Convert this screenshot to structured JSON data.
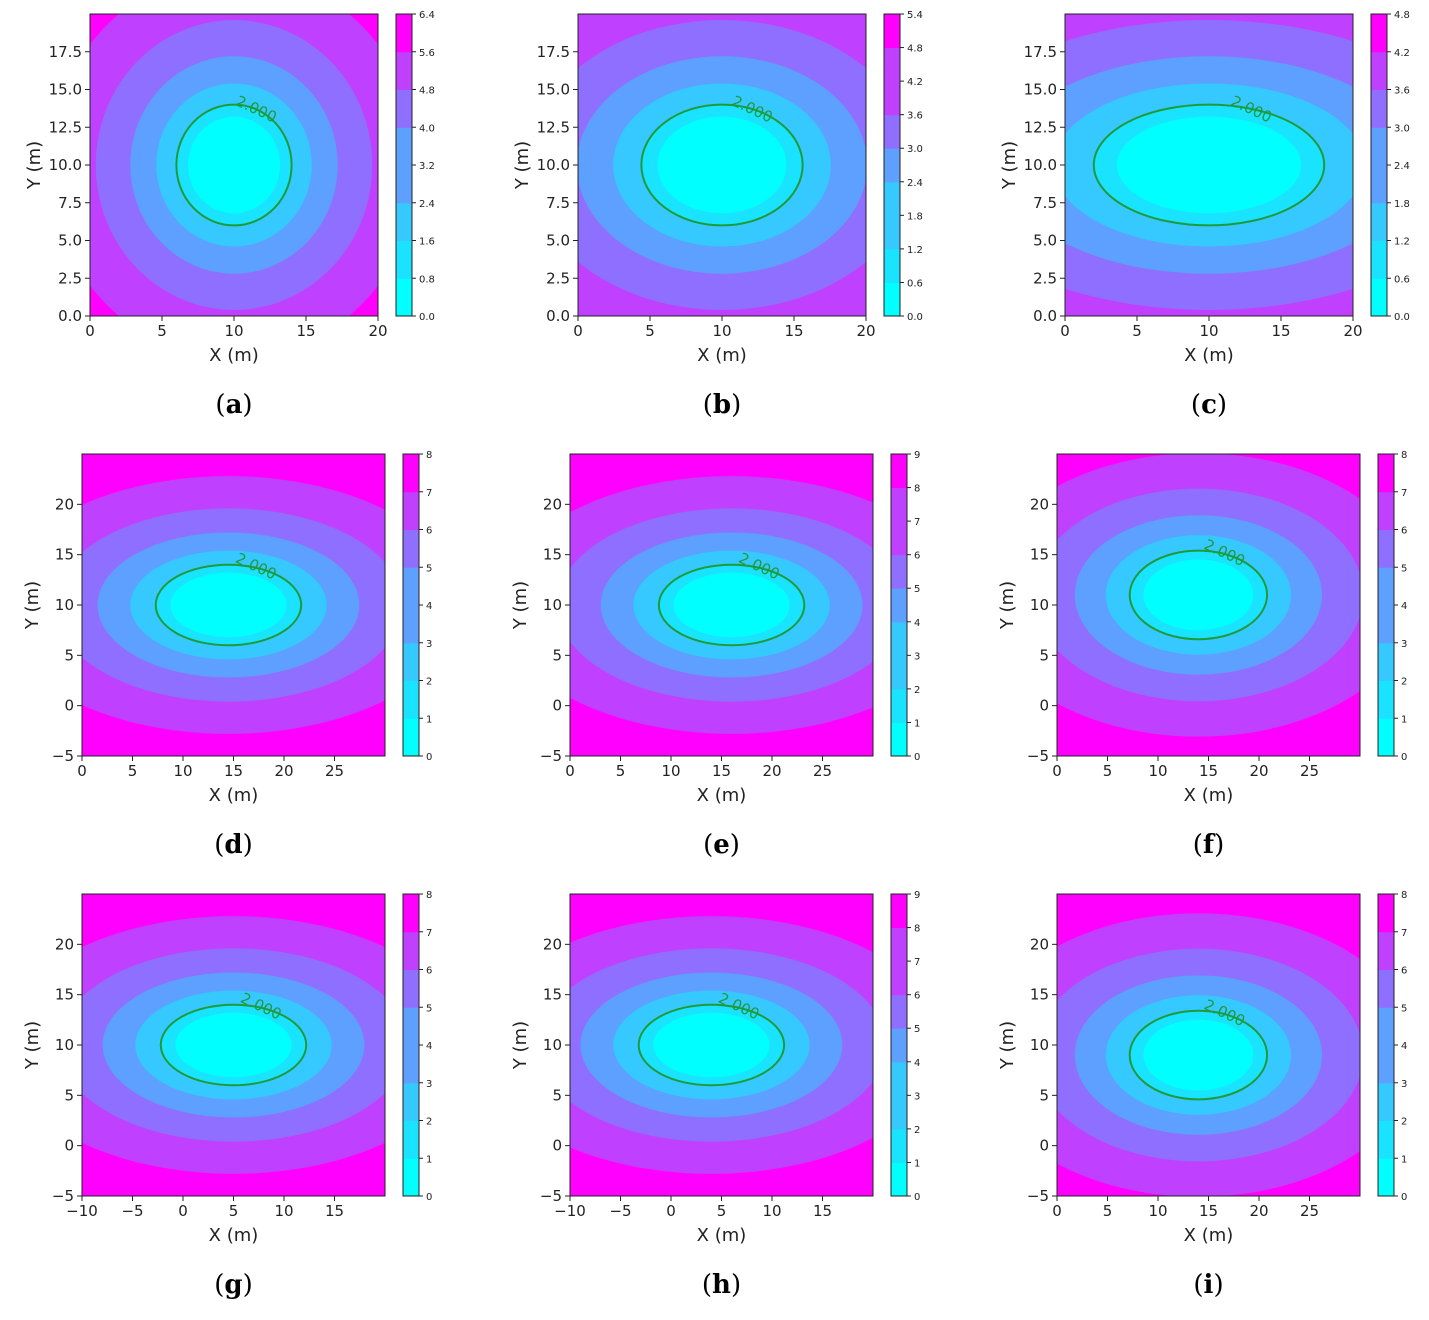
{
  "figure": {
    "panels": [
      "a",
      "b",
      "c",
      "d",
      "e",
      "f",
      "g",
      "h",
      "i"
    ]
  },
  "chart_data": [
    {
      "id": "a",
      "caption": "a",
      "type": "contourf",
      "xlabel": "X (m)",
      "ylabel": "Y (m)",
      "xlim": [
        0,
        20
      ],
      "ylim": [
        0,
        20
      ],
      "xticks": [
        "0",
        "5",
        "10",
        "15",
        "20"
      ],
      "yticks": [
        "0.0",
        "2.5",
        "5.0",
        "7.5",
        "10.0",
        "12.5",
        "15.0",
        "17.5"
      ],
      "colorbar": {
        "ticks": [
          "0.0",
          "0.8",
          "1.6",
          "2.4",
          "3.2",
          "4.0",
          "4.8",
          "5.6",
          "6.4"
        ],
        "max": 6.4
      },
      "field": {
        "cx": 10,
        "cy": 10,
        "sx": 1,
        "sy": 1
      },
      "contour": {
        "level": 2.0,
        "label": "2.000"
      }
    },
    {
      "id": "b",
      "caption": "b",
      "type": "contourf",
      "xlabel": "X (m)",
      "ylabel": "Y (m)",
      "xlim": [
        0,
        20
      ],
      "ylim": [
        0,
        20
      ],
      "xticks": [
        "0",
        "5",
        "10",
        "15",
        "20"
      ],
      "yticks": [
        "0.0",
        "2.5",
        "5.0",
        "7.5",
        "10.0",
        "12.5",
        "15.0",
        "17.5"
      ],
      "colorbar": {
        "ticks": [
          "0.0",
          "0.6",
          "1.2",
          "1.8",
          "2.4",
          "3.0",
          "3.6",
          "4.2",
          "4.8",
          "5.4"
        ],
        "max": 5.4
      },
      "field": {
        "cx": 10,
        "cy": 10,
        "sx": 1.4,
        "sy": 1
      },
      "contour": {
        "level": 2.0,
        "label": "2.000"
      }
    },
    {
      "id": "c",
      "caption": "c",
      "type": "contourf",
      "xlabel": "X (m)",
      "ylabel": "Y (m)",
      "xlim": [
        0,
        20
      ],
      "ylim": [
        0,
        20
      ],
      "xticks": [
        "0",
        "5",
        "10",
        "15",
        "20"
      ],
      "yticks": [
        "0.0",
        "2.5",
        "5.0",
        "7.5",
        "10.0",
        "12.5",
        "15.0",
        "17.5"
      ],
      "colorbar": {
        "ticks": [
          "0.0",
          "0.6",
          "1.2",
          "1.8",
          "2.4",
          "3.0",
          "3.6",
          "4.2",
          "4.8"
        ],
        "max": 4.8
      },
      "field": {
        "cx": 10,
        "cy": 10,
        "sx": 2,
        "sy": 1
      },
      "contour": {
        "level": 2.0,
        "label": "2.000"
      }
    },
    {
      "id": "d",
      "caption": "d",
      "type": "contourf",
      "xlabel": "X (m)",
      "ylabel": "Y (m)",
      "xlim": [
        0,
        30
      ],
      "ylim": [
        -5,
        25
      ],
      "xticks": [
        "0",
        "5",
        "10",
        "15",
        "20",
        "25"
      ],
      "yticks": [
        "−5",
        "0",
        "5",
        "10",
        "15",
        "20"
      ],
      "colorbar": {
        "ticks": [
          "0",
          "1",
          "2",
          "3",
          "4",
          "5",
          "6",
          "7",
          "8"
        ],
        "max": 8
      },
      "field": {
        "cx": 14.5,
        "cy": 10,
        "sx": 1.8,
        "sy": 1
      },
      "contour": {
        "level": 2.0,
        "label": "2.000"
      }
    },
    {
      "id": "e",
      "caption": "e",
      "type": "contourf",
      "xlabel": "X (m)",
      "ylabel": "Y (m)",
      "xlim": [
        0,
        30
      ],
      "ylim": [
        -5,
        25
      ],
      "xticks": [
        "0",
        "5",
        "10",
        "15",
        "20",
        "25"
      ],
      "yticks": [
        "−5",
        "0",
        "5",
        "10",
        "15",
        "20"
      ],
      "colorbar": {
        "ticks": [
          "0",
          "1",
          "2",
          "3",
          "4",
          "5",
          "6",
          "7",
          "8",
          "9"
        ],
        "max": 9
      },
      "field": {
        "cx": 16,
        "cy": 10,
        "sx": 1.8,
        "sy": 1
      },
      "contour": {
        "level": 2.0,
        "label": "2.000"
      }
    },
    {
      "id": "f",
      "caption": "f",
      "type": "contourf",
      "xlabel": "X (m)",
      "ylabel": "Y (m)",
      "xlim": [
        0,
        30
      ],
      "ylim": [
        -5,
        25
      ],
      "xticks": [
        "0",
        "5",
        "10",
        "15",
        "20",
        "25"
      ],
      "yticks": [
        "−5",
        "0",
        "5",
        "10",
        "15",
        "20"
      ],
      "colorbar": {
        "ticks": [
          "0",
          "1",
          "2",
          "3",
          "4",
          "5",
          "6",
          "7",
          "8"
        ],
        "max": 8
      },
      "field": {
        "cx": 14,
        "cy": 11,
        "sx": 1.7,
        "sy": 1.1
      },
      "contour": {
        "level": 2.0,
        "label": "2.000"
      }
    },
    {
      "id": "g",
      "caption": "g",
      "type": "contourf",
      "xlabel": "X (m)",
      "ylabel": "Y (m)",
      "xlim": [
        -10,
        20
      ],
      "ylim": [
        -5,
        25
      ],
      "xticks": [
        "−10",
        "−5",
        "0",
        "5",
        "10",
        "15"
      ],
      "yticks": [
        "−5",
        "0",
        "5",
        "10",
        "15",
        "20"
      ],
      "colorbar": {
        "ticks": [
          "0",
          "1",
          "2",
          "3",
          "4",
          "5",
          "6",
          "7",
          "8"
        ],
        "max": 8
      },
      "field": {
        "cx": 5,
        "cy": 10,
        "sx": 1.8,
        "sy": 1
      },
      "contour": {
        "level": 2.0,
        "label": "2.000"
      }
    },
    {
      "id": "h",
      "caption": "h",
      "type": "contourf",
      "xlabel": "X (m)",
      "ylabel": "Y (m)",
      "xlim": [
        -10,
        20
      ],
      "ylim": [
        -5,
        25
      ],
      "xticks": [
        "−10",
        "−5",
        "0",
        "5",
        "10",
        "15"
      ],
      "yticks": [
        "−5",
        "0",
        "5",
        "10",
        "15",
        "20"
      ],
      "colorbar": {
        "ticks": [
          "0",
          "1",
          "2",
          "3",
          "4",
          "5",
          "6",
          "7",
          "8",
          "9"
        ],
        "max": 9
      },
      "field": {
        "cx": 4,
        "cy": 10,
        "sx": 1.8,
        "sy": 1
      },
      "contour": {
        "level": 2.0,
        "label": "2.000"
      }
    },
    {
      "id": "i",
      "caption": "i",
      "type": "contourf",
      "xlabel": "X (m)",
      "ylabel": "Y (m)",
      "xlim": [
        0,
        30
      ],
      "ylim": [
        -5,
        25
      ],
      "xticks": [
        "0",
        "5",
        "10",
        "15",
        "20",
        "25"
      ],
      "yticks": [
        "−5",
        "0",
        "5",
        "10",
        "15",
        "20"
      ],
      "colorbar": {
        "ticks": [
          "0",
          "1",
          "2",
          "3",
          "4",
          "5",
          "6",
          "7",
          "8"
        ],
        "max": 8
      },
      "field": {
        "cx": 14,
        "cy": 9,
        "sx": 1.7,
        "sy": 1.1
      },
      "contour": {
        "level": 2.0,
        "label": "2.000"
      }
    }
  ],
  "colors": {
    "level_fills": [
      "#00ffff",
      "#1ae3ff",
      "#35c9ff",
      "#5ea0ff",
      "#8f6fff",
      "#c040ff",
      "#ff00ff"
    ],
    "contour_line": "#1f9a3a",
    "contour_label": "#1f9a3a"
  }
}
